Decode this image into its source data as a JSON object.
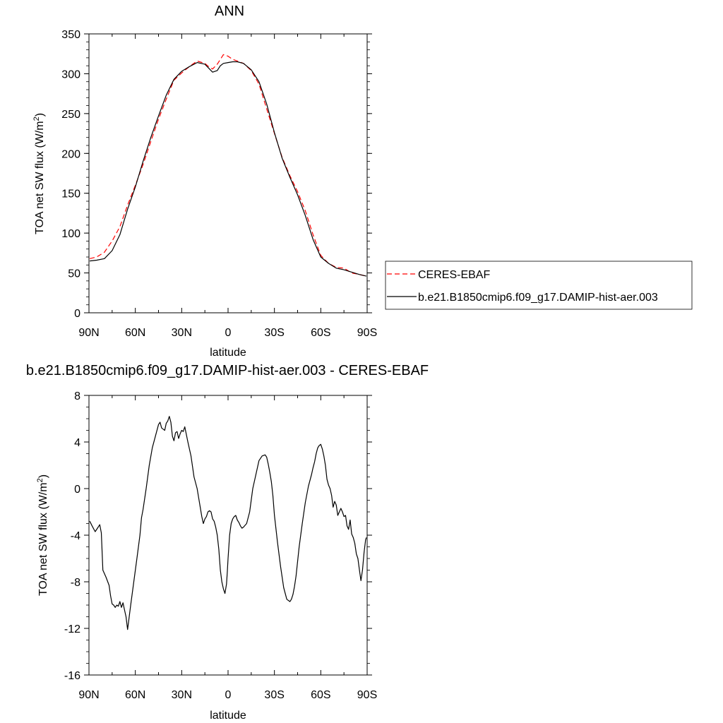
{
  "chart_data": [
    {
      "type": "line",
      "title": "ANN",
      "xlabel": "latitude",
      "ylabel": "TOA net SW flux (W/m",
      "ylabel_sup": "2",
      "ylabel_tail": ")",
      "xlim": [
        90,
        -90
      ],
      "ylim": [
        0,
        350
      ],
      "x_ticks": [
        90,
        60,
        30,
        0,
        -30,
        -60,
        -90
      ],
      "x_tick_labels": [
        "90N",
        "60N",
        "30N",
        "0",
        "30S",
        "60S",
        "90S"
      ],
      "y_ticks": [
        0,
        50,
        100,
        150,
        200,
        250,
        300,
        350
      ],
      "y_tick_labels": [
        "0",
        "50",
        "100",
        "150",
        "200",
        "250",
        "300",
        "350"
      ],
      "legend_placement": "right",
      "grid": false,
      "series": [
        {
          "name": "CERES-EBAF",
          "color": "#ff0000",
          "dash": "dashed",
          "x": [
            89.5,
            85,
            80,
            75,
            70,
            65,
            60,
            55,
            50,
            45,
            40,
            35,
            30,
            25,
            20,
            15,
            12,
            10,
            7,
            5,
            3,
            0,
            -3,
            -6,
            -10,
            -15,
            -20,
            -25,
            -30,
            -35,
            -40,
            -45,
            -50,
            -55,
            -60,
            -65,
            -70,
            -75,
            -80,
            -85,
            -89.5
          ],
          "values": [
            68,
            70,
            76,
            90,
            108,
            135,
            160,
            186,
            215,
            243,
            268,
            292,
            301,
            309,
            316,
            313,
            308,
            306,
            312,
            318,
            324,
            322,
            318,
            316,
            313,
            304,
            287,
            256,
            225,
            195,
            172,
            152,
            128,
            98,
            72,
            62,
            57,
            56,
            50,
            48,
            46
          ]
        },
        {
          "name": "b.e21.B1850cmip6.f09_g17.DAMIP-hist-aer.003",
          "color": "#000000",
          "dash": "solid",
          "x": [
            89.5,
            85,
            80,
            75,
            70,
            65,
            60,
            55,
            50,
            45,
            40,
            35,
            30,
            25,
            20,
            15,
            12,
            10,
            7,
            5,
            3,
            0,
            -3,
            -6,
            -10,
            -15,
            -20,
            -25,
            -30,
            -35,
            -40,
            -45,
            -50,
            -55,
            -60,
            -65,
            -70,
            -75,
            -80,
            -85,
            -89.5
          ],
          "values": [
            65,
            66,
            68,
            78,
            98,
            130,
            158,
            190,
            220,
            247,
            273,
            293,
            303,
            309,
            314,
            312,
            306,
            302,
            304,
            310,
            313,
            314,
            315,
            315,
            313,
            305,
            290,
            262,
            226,
            194,
            170,
            148,
            122,
            92,
            70,
            62,
            56,
            54,
            51,
            48,
            46
          ]
        }
      ]
    },
    {
      "type": "line",
      "title": "b.e21.B1850cmip6.f09_g17.DAMIP-hist-aer.003 - CERES-EBAF",
      "xlabel": "latitude",
      "ylabel": "TOA net SW flux (W/m",
      "ylabel_sup": "2",
      "ylabel_tail": ")",
      "xlim": [
        90,
        -90
      ],
      "ylim": [
        -16,
        8
      ],
      "x_ticks": [
        90,
        60,
        30,
        0,
        -30,
        -60,
        -90
      ],
      "x_tick_labels": [
        "90N",
        "60N",
        "30N",
        "0",
        "30S",
        "60S",
        "90S"
      ],
      "y_ticks": [
        8,
        4,
        0,
        -4,
        -8,
        -12,
        -16
      ],
      "y_tick_labels": [
        "8",
        "4",
        "0",
        "-4",
        "-8",
        "-12",
        "-16"
      ],
      "grid": false,
      "series": [
        {
          "color": "#000000",
          "dash": "solid",
          "x": [
            89.5,
            88,
            86,
            84,
            83,
            82,
            81,
            79,
            77,
            76,
            75,
            74,
            73,
            72,
            71,
            70,
            69,
            68,
            67,
            66,
            65,
            63,
            61,
            59,
            57,
            56,
            55,
            53,
            51,
            49,
            47,
            45,
            44,
            43,
            42,
            41,
            40,
            39,
            38,
            37,
            36,
            35,
            34,
            33,
            32,
            31,
            30,
            29,
            28,
            26,
            24,
            22,
            20,
            19,
            18,
            17,
            16,
            15,
            14,
            13,
            12,
            11,
            10,
            9,
            8,
            7,
            6,
            5,
            4,
            3,
            2,
            1,
            0.5,
            0,
            -1,
            -2,
            -3,
            -4,
            -5,
            -6,
            -7,
            -8,
            -9,
            -10,
            -12,
            -14,
            -16,
            -18,
            -20,
            -22,
            -24,
            -25,
            -26,
            -27,
            -28,
            -29,
            -30,
            -32,
            -34,
            -36,
            -38,
            -40,
            -41,
            -42,
            -43,
            -44,
            -46,
            -48,
            -50,
            -52,
            -54,
            -55,
            -56,
            -57,
            -58,
            -59,
            -60,
            -61,
            -62,
            -63,
            -64,
            -65,
            -66,
            -67,
            -68,
            -69,
            -70,
            -71,
            -72,
            -73,
            -74,
            -75,
            -76,
            -77,
            -78,
            -79,
            -80,
            -81,
            -82,
            -83,
            -84,
            -85,
            -86,
            -87,
            -88,
            -89,
            -89.5
          ],
          "values": [
            -2.8,
            -3.2,
            -3.7,
            -3.3,
            -3.1,
            -3.8,
            -7.0,
            -7.6,
            -8.3,
            -9.2,
            -9.9,
            -10.0,
            -10.2,
            -10.0,
            -10.1,
            -9.7,
            -10.2,
            -9.8,
            -10.4,
            -11.0,
            -12.1,
            -10.0,
            -8.0,
            -6.0,
            -4.0,
            -2.5,
            -1.8,
            0.0,
            2.0,
            3.5,
            4.5,
            5.5,
            5.7,
            5.2,
            5.1,
            5.0,
            5.6,
            5.8,
            6.2,
            5.7,
            4.5,
            4.1,
            4.8,
            4.9,
            4.3,
            4.7,
            5.0,
            4.9,
            5.3,
            4.0,
            2.8,
            1.0,
            0.0,
            -0.8,
            -1.6,
            -2.4,
            -3.0,
            -2.6,
            -2.4,
            -2.0,
            -1.9,
            -2.0,
            -2.6,
            -2.8,
            -3.3,
            -4.0,
            -5.2,
            -7.0,
            -8.0,
            -8.6,
            -9.0,
            -8.2,
            -7.2,
            -6.0,
            -4.0,
            -3.0,
            -2.6,
            -2.4,
            -2.3,
            -2.7,
            -2.9,
            -3.2,
            -3.4,
            -3.3,
            -3.0,
            -2.0,
            0.0,
            1.2,
            2.4,
            2.8,
            2.9,
            2.7,
            2.1,
            1.4,
            0.6,
            -0.6,
            -2.3,
            -4.6,
            -6.7,
            -8.5,
            -9.5,
            -9.7,
            -9.5,
            -9.1,
            -8.4,
            -7.5,
            -5.0,
            -3.0,
            -1.2,
            0.2,
            1.2,
            1.8,
            2.3,
            3.0,
            3.5,
            3.7,
            3.8,
            3.4,
            2.8,
            2.0,
            0.8,
            0.3,
            0.0,
            -0.6,
            -1.6,
            -1.1,
            -1.4,
            -2.3,
            -2.0,
            -1.7,
            -2.0,
            -2.4,
            -2.3,
            -3.2,
            -3.5,
            -2.7,
            -3.9,
            -4.2,
            -4.7,
            -5.6,
            -6.0,
            -7.0,
            -7.9,
            -7.0,
            -5.5,
            -4.4,
            -4.2
          ]
        }
      ]
    }
  ]
}
